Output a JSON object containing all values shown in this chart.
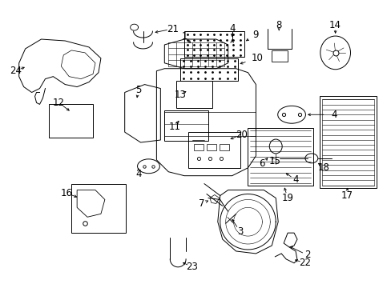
{
  "bg_color": "#ffffff",
  "line_color": "#000000",
  "text_color": "#000000",
  "fig_width": 4.89,
  "fig_height": 3.6,
  "dpi": 100,
  "label_fontsize": 8.5,
  "lw": 0.7
}
